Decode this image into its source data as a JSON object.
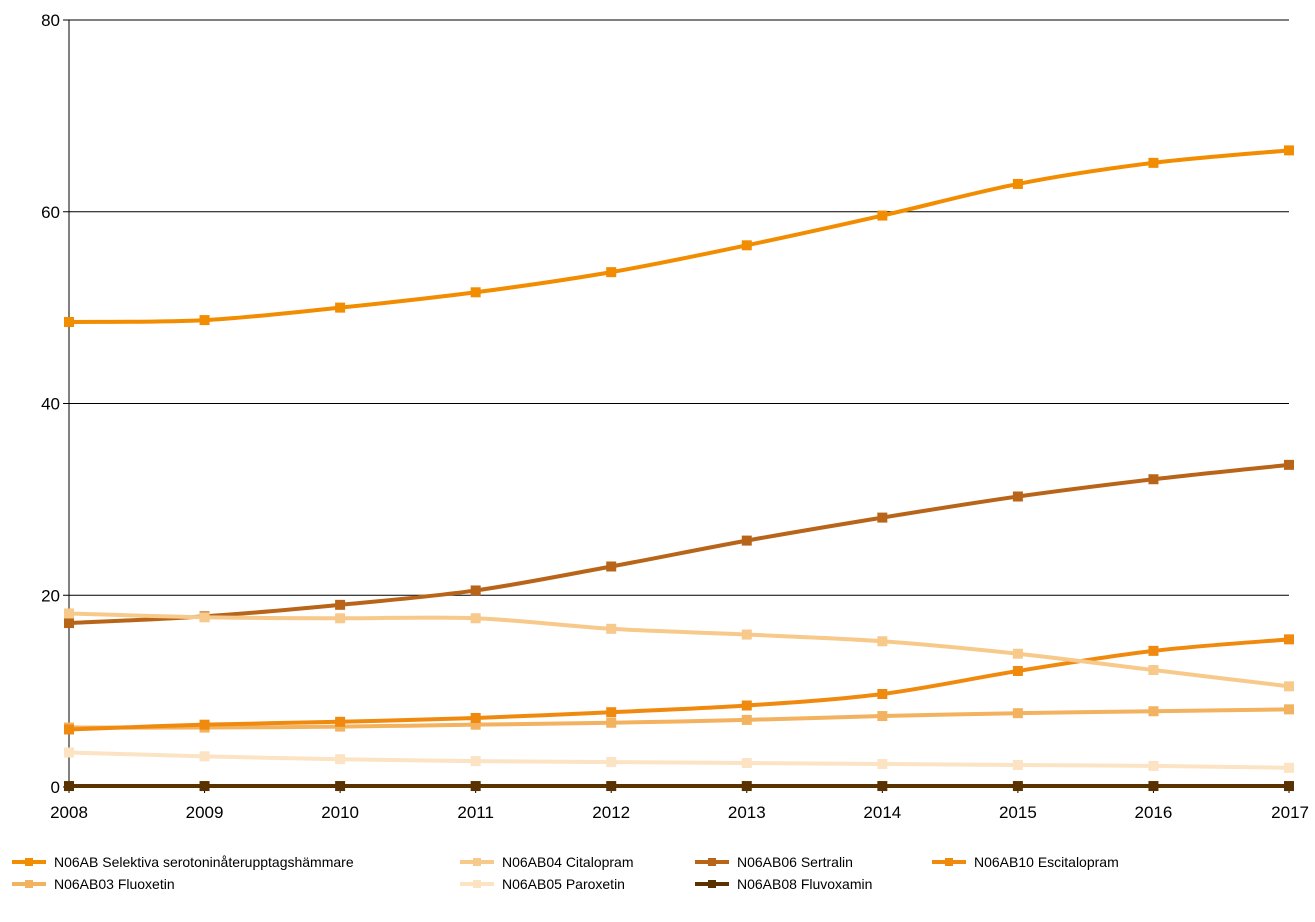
{
  "chart_data": {
    "type": "line",
    "x": [
      2008,
      2009,
      2010,
      2011,
      2012,
      2013,
      2014,
      2015,
      2016,
      2017
    ],
    "x_tick_labels": [
      "2008",
      "2009",
      "2010",
      "2011",
      "2012",
      "2013",
      "2014",
      "2015",
      "2016",
      "2017"
    ],
    "y_ticks": [
      0,
      20,
      40,
      60,
      80
    ],
    "y_tick_labels": [
      "0",
      "20",
      "40",
      "60",
      "80"
    ],
    "ylim": [
      0,
      80
    ],
    "grid": true,
    "legend_position": "bottom",
    "title": "",
    "xlabel": "",
    "ylabel": "",
    "series": [
      {
        "name": "N06AB Selektiva serotoninåterupptagshämmare",
        "color": "#F28C00",
        "values": [
          48.5,
          48.7,
          50.0,
          51.6,
          53.7,
          56.5,
          59.6,
          62.9,
          65.1,
          66.4
        ]
      },
      {
        "name": "N06AB04 Citalopram",
        "color": "#F7C98A",
        "values": [
          18.1,
          17.7,
          17.6,
          17.6,
          16.5,
          15.9,
          15.2,
          13.9,
          12.2,
          10.5
        ]
      },
      {
        "name": "N06AB06 Sertralin",
        "color": "#B8651A",
        "values": [
          17.1,
          17.8,
          19.0,
          20.5,
          23.0,
          25.7,
          28.1,
          30.3,
          32.1,
          33.6
        ]
      },
      {
        "name": "N06AB10 Escitalopram",
        "color": "#F08A0E",
        "values": [
          6.0,
          6.5,
          6.8,
          7.2,
          7.8,
          8.5,
          9.7,
          12.1,
          14.2,
          15.4
        ]
      },
      {
        "name": "N06AB03 Fluoxetin",
        "color": "#F2B25F",
        "values": [
          6.2,
          6.2,
          6.3,
          6.5,
          6.7,
          7.0,
          7.4,
          7.7,
          7.9,
          8.1
        ]
      },
      {
        "name": "N06AB05 Paroxetin",
        "color": "#FBE3C4",
        "values": [
          3.6,
          3.2,
          2.9,
          2.7,
          2.6,
          2.5,
          2.4,
          2.3,
          2.2,
          2.0
        ]
      },
      {
        "name": "N06AB08 Fluvoxamin",
        "color": "#5A3200",
        "values": [
          0.1,
          0.1,
          0.1,
          0.1,
          0.1,
          0.1,
          0.1,
          0.1,
          0.1,
          0.1
        ]
      }
    ],
    "legend_rows": [
      [
        0,
        1,
        2,
        3
      ],
      [
        4,
        5,
        6
      ]
    ]
  }
}
